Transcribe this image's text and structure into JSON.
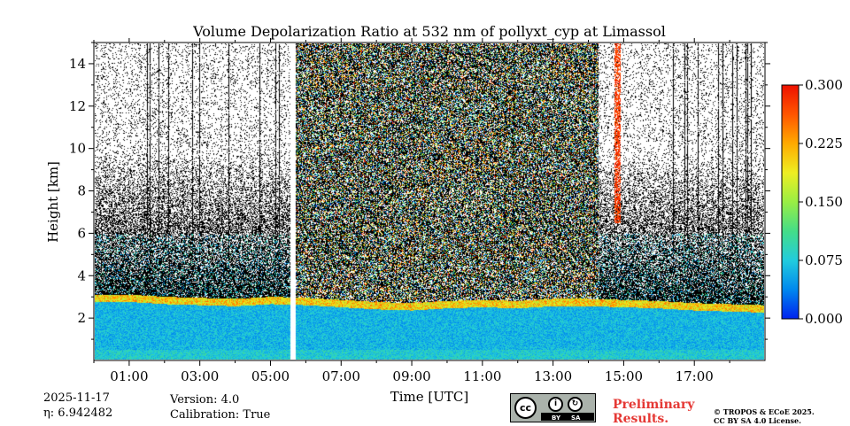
{
  "chart_data": {
    "type": "heatmap",
    "title": "Volume Depolarization Ratio at 532 nm of pollyxt_cyp at Limassol",
    "xlabel": "Time [UTC]",
    "ylabel": "Height [km]",
    "xlim_hours": [
      0,
      19
    ],
    "ylim_km": [
      0,
      15
    ],
    "x_ticks": [
      {
        "hour": 1,
        "label": "01:00"
      },
      {
        "hour": 3,
        "label": "03:00"
      },
      {
        "hour": 5,
        "label": "05:00"
      },
      {
        "hour": 7,
        "label": "07:00"
      },
      {
        "hour": 9,
        "label": "09:00"
      },
      {
        "hour": 11,
        "label": "11:00"
      },
      {
        "hour": 13,
        "label": "13:00"
      },
      {
        "hour": 15,
        "label": "15:00"
      },
      {
        "hour": 17,
        "label": "17:00"
      }
    ],
    "y_ticks": [
      {
        "km": 2,
        "label": "2"
      },
      {
        "km": 4,
        "label": "4"
      },
      {
        "km": 6,
        "label": "6"
      },
      {
        "km": 8,
        "label": "8"
      },
      {
        "km": 10,
        "label": "10"
      },
      {
        "km": 12,
        "label": "12"
      },
      {
        "km": 14,
        "label": "14"
      }
    ],
    "colorbar": {
      "vmin": 0.0,
      "vmax": 0.3,
      "ticks": [
        "0.000",
        "0.075",
        "0.150",
        "0.225",
        "0.300"
      ],
      "colors": [
        "#0022ee",
        "#0088ee",
        "#22ccdd",
        "#44dd88",
        "#99ee44",
        "#eeee22",
        "#ffaa00",
        "#ff5500",
        "#ee1100"
      ]
    },
    "features": {
      "aerosol_layer_top_km": [
        3.0,
        3.0,
        2.9,
        2.85,
        2.8,
        2.9,
        2.85,
        2.75,
        2.65,
        2.6,
        2.7,
        2.75,
        2.7,
        2.8,
        2.8,
        2.75,
        2.7,
        2.6,
        2.55,
        2.5
      ],
      "data_gap_hours": [
        5.55,
        5.7
      ],
      "high_depol_band_hours": [
        14.75,
        14.92
      ],
      "noisy_daytime_hours": [
        5.7,
        14.3
      ]
    }
  },
  "footer": {
    "date": "2025-11-17",
    "eta": "η: 6.942482",
    "version": "Version: 4.0",
    "calibration": "Calibration: True",
    "preliminary_line1": "Preliminary",
    "preliminary_line2": "Results.",
    "license_line1": "© TROPOS & ECoE 2025.",
    "license_line2": "CC BY SA 4.0 License.",
    "cc_badge": {
      "cc": "cc",
      "by": "BY",
      "sa": "SA"
    }
  }
}
